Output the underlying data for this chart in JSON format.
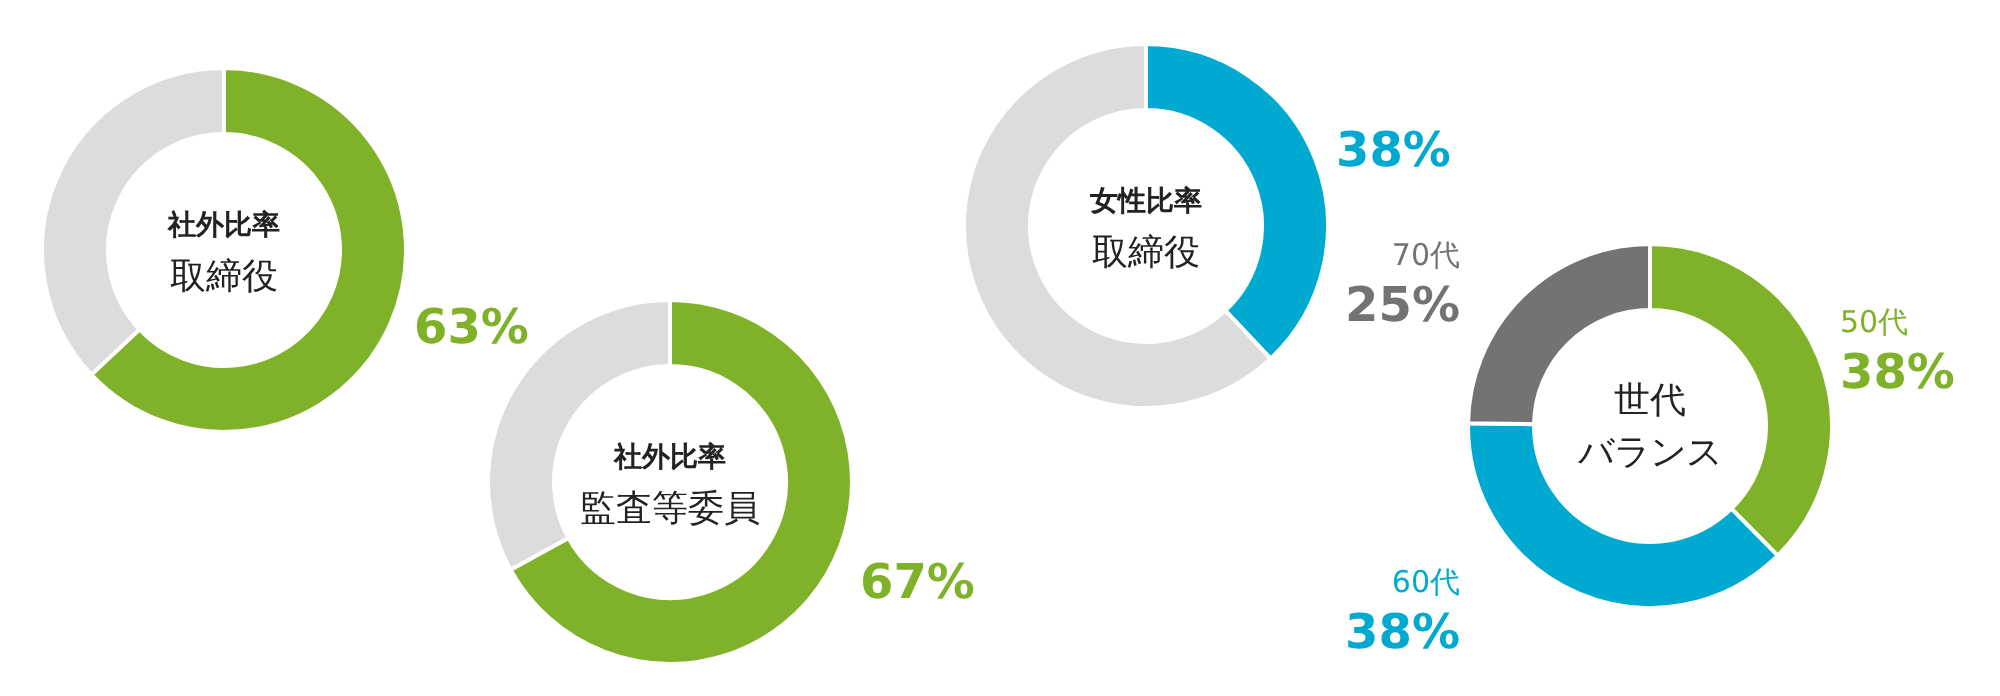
{
  "chart_data": [
    {
      "type": "donut",
      "title": "社外比率",
      "subtitle": "取締役",
      "categories": [
        null,
        null
      ],
      "values": [
        63,
        37
      ],
      "colors": [
        "#80b229",
        "#dcdcdc"
      ],
      "value_labels": [
        "63%",
        null
      ]
    },
    {
      "type": "donut",
      "title": "社外比率",
      "subtitle": "監査等委員",
      "categories": [
        null,
        null
      ],
      "values": [
        67,
        33
      ],
      "colors": [
        "#80b229",
        "#dcdcdc"
      ],
      "value_labels": [
        "67%",
        null
      ]
    },
    {
      "type": "donut",
      "title": "女性比率",
      "subtitle": "取締役",
      "categories": [
        null,
        null
      ],
      "values": [
        38,
        62
      ],
      "colors": [
        "#00a9d0",
        "#dcdcdc"
      ],
      "value_labels": [
        "38%",
        null
      ]
    },
    {
      "type": "donut",
      "title": "世代",
      "subtitle": "バランス",
      "categories": [
        "50代",
        "60代",
        "70代"
      ],
      "values": [
        38,
        38,
        25
      ],
      "colors": [
        "#80b229",
        "#00a9d0",
        "#747374"
      ],
      "value_labels": [
        "38%",
        "38%",
        "25%"
      ]
    }
  ]
}
